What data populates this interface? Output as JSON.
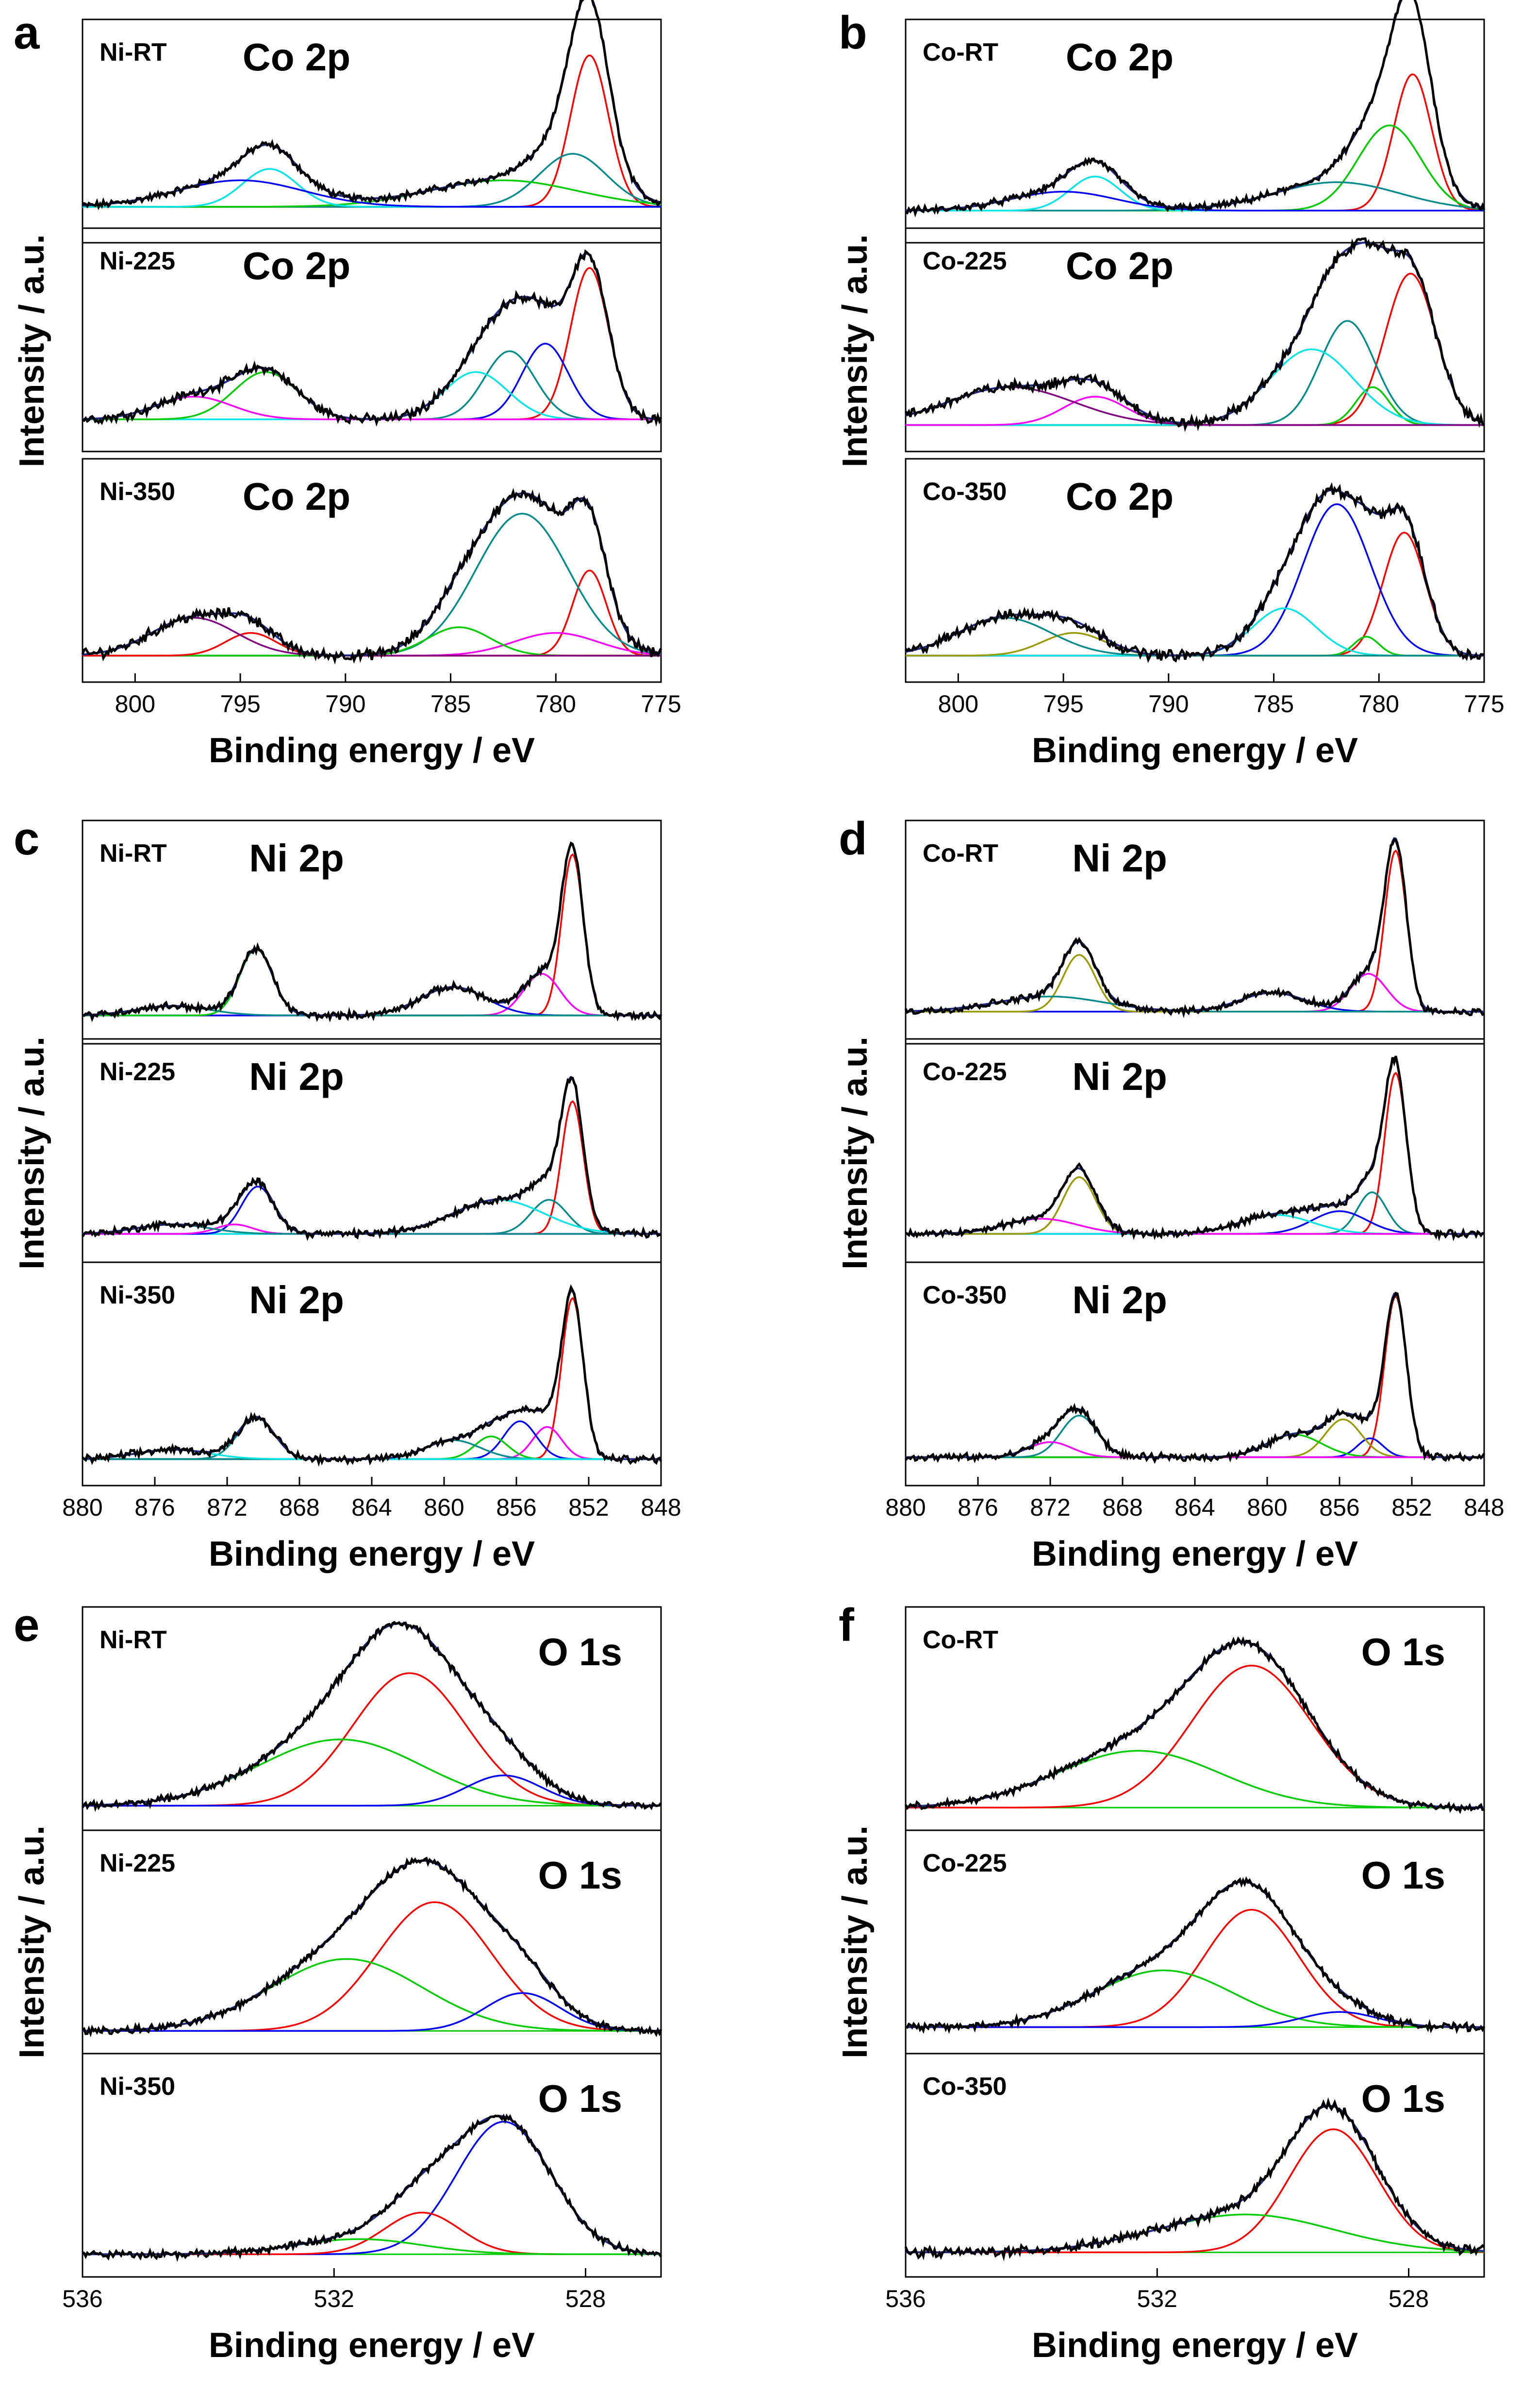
{
  "figure": {
    "panel_labels": [
      "a",
      "b",
      "c",
      "d",
      "e",
      "f"
    ],
    "ylabel": "Intensity / a.u.",
    "xlabel": "Binding energy / eV",
    "colors": {
      "experimental": "#000000",
      "envelope": "#1f2a8a",
      "red": "#ff0000",
      "green": "#00cc00",
      "blue": "#0000ff",
      "cyan": "#00e5e5",
      "magenta": "#ff00ff",
      "teal": "#008b8b",
      "olive": "#999900",
      "purple": "#800080",
      "baseline": "#00cc00"
    }
  },
  "chart_data": [
    {
      "panel": "a",
      "type": "line",
      "title": "Co 2p",
      "xlim": [
        802.5,
        775
      ],
      "xreverse": true,
      "xticks": [
        800,
        795,
        790,
        785,
        780,
        775
      ],
      "xlabel": "Binding energy / eV",
      "ylabel": "Intensity / a.u.",
      "subplots": [
        {
          "sample": "Ni-RT",
          "spectrum": "Co 2p",
          "base": 0.1,
          "noise": 0.015,
          "components": [
            {
              "color": "red",
              "center": 778.4,
              "height": 0.8,
              "width": 0.9
            },
            {
              "color": "teal",
              "center": 779.2,
              "height": 0.28,
              "width": 1.6
            },
            {
              "color": "green",
              "center": 782.5,
              "height": 0.14,
              "width": 3.5
            },
            {
              "color": "cyan",
              "center": 793.6,
              "height": 0.2,
              "width": 1.3
            },
            {
              "color": "blue",
              "center": 795,
              "height": 0.14,
              "width": 3
            }
          ]
        },
        {
          "sample": "Ni-225",
          "spectrum": "Co 2p",
          "base": 0.08,
          "noise": 0.02,
          "components": [
            {
              "color": "red",
              "center": 778.4,
              "height": 0.8,
              "width": 0.9
            },
            {
              "color": "blue",
              "center": 780.5,
              "height": 0.4,
              "width": 1.1
            },
            {
              "color": "teal",
              "center": 782.2,
              "height": 0.36,
              "width": 1.2
            },
            {
              "color": "cyan",
              "center": 783.8,
              "height": 0.25,
              "width": 1.5
            },
            {
              "color": "green",
              "center": 793.8,
              "height": 0.25,
              "width": 1.5
            },
            {
              "color": "magenta",
              "center": 797.2,
              "height": 0.12,
              "width": 1.8
            }
          ]
        },
        {
          "sample": "Ni-350",
          "spectrum": "Co 2p",
          "base": 0.05,
          "noise": 0.022,
          "components": [
            {
              "color": "red",
              "center": 778.4,
              "height": 0.45,
              "width": 0.8
            },
            {
              "color": "magenta",
              "center": 780,
              "height": 0.12,
              "width": 2
            },
            {
              "color": "teal",
              "center": 781.6,
              "height": 0.75,
              "width": 2.2
            },
            {
              "color": "green",
              "center": 784.6,
              "height": 0.15,
              "width": 1.5
            },
            {
              "color": "red",
              "center": 794.5,
              "height": 0.12,
              "width": 1.2
            },
            {
              "color": "purple",
              "center": 797.2,
              "height": 0.2,
              "width": 2
            }
          ]
        }
      ]
    },
    {
      "panel": "b",
      "type": "line",
      "title": "Co 2p",
      "xlim": [
        802.5,
        775
      ],
      "xreverse": true,
      "xticks": [
        800,
        795,
        790,
        785,
        780,
        775
      ],
      "xlabel": "Binding energy / eV",
      "ylabel": "Intensity / a.u.",
      "subplots": [
        {
          "sample": "Co-RT",
          "spectrum": "Co 2p",
          "base": 0.08,
          "noise": 0.015,
          "components": [
            {
              "color": "red",
              "center": 778.4,
              "height": 0.72,
              "width": 0.9
            },
            {
              "color": "green",
              "center": 779.5,
              "height": 0.45,
              "width": 1.5
            },
            {
              "color": "teal",
              "center": 782,
              "height": 0.15,
              "width": 3
            },
            {
              "color": "cyan",
              "center": 793.5,
              "height": 0.18,
              "width": 1.2
            },
            {
              "color": "blue",
              "center": 795,
              "height": 0.1,
              "width": 2.5
            }
          ]
        },
        {
          "sample": "Co-225",
          "spectrum": "Co 2p",
          "base": 0.05,
          "noise": 0.022,
          "components": [
            {
              "color": "red",
              "center": 778.5,
              "height": 0.8,
              "width": 1.2
            },
            {
              "color": "green",
              "center": 780.3,
              "height": 0.2,
              "width": 0.8
            },
            {
              "color": "teal",
              "center": 781.5,
              "height": 0.55,
              "width": 1.3
            },
            {
              "color": "cyan",
              "center": 783.2,
              "height": 0.4,
              "width": 2
            },
            {
              "color": "magenta",
              "center": 793.5,
              "height": 0.15,
              "width": 1.5
            },
            {
              "color": "purple",
              "center": 797.5,
              "height": 0.2,
              "width": 3
            }
          ]
        },
        {
          "sample": "Co-350",
          "spectrum": "Co 2p",
          "base": 0.05,
          "noise": 0.022,
          "components": [
            {
              "color": "red",
              "center": 778.8,
              "height": 0.65,
              "width": 1
            },
            {
              "color": "green",
              "center": 780.6,
              "height": 0.1,
              "width": 0.6
            },
            {
              "color": "blue",
              "center": 782,
              "height": 0.8,
              "width": 1.6
            },
            {
              "color": "cyan",
              "center": 784.5,
              "height": 0.25,
              "width": 1.5
            },
            {
              "color": "olive",
              "center": 794.5,
              "height": 0.12,
              "width": 1.5
            },
            {
              "color": "teal",
              "center": 797.8,
              "height": 0.2,
              "width": 2.2
            }
          ]
        }
      ]
    },
    {
      "panel": "c",
      "type": "line",
      "title": "Ni 2p",
      "xlim": [
        880,
        848
      ],
      "xreverse": true,
      "xticks": [
        880,
        876,
        872,
        868,
        864,
        860,
        856,
        852,
        848
      ],
      "xlabel": "Binding energy / eV",
      "ylabel": "Intensity / a.u.",
      "subplots": [
        {
          "sample": "Ni-RT",
          "spectrum": "Ni 2p",
          "base": 0.06,
          "noise": 0.015,
          "components": [
            {
              "color": "red",
              "center": 852.9,
              "height": 0.85,
              "width": 0.6
            },
            {
              "color": "magenta",
              "center": 854.6,
              "height": 0.22,
              "width": 1
            },
            {
              "color": "blue",
              "center": 859.5,
              "height": 0.15,
              "width": 1.8
            },
            {
              "color": "green",
              "center": 870.4,
              "height": 0.35,
              "width": 0.9
            },
            {
              "color": "teal",
              "center": 875,
              "height": 0.05,
              "width": 2
            }
          ]
        },
        {
          "sample": "Ni-225",
          "spectrum": "Ni 2p",
          "base": 0.06,
          "noise": 0.015,
          "components": [
            {
              "color": "red",
              "center": 852.9,
              "height": 0.7,
              "width": 0.6
            },
            {
              "color": "teal",
              "center": 854.2,
              "height": 0.18,
              "width": 1
            },
            {
              "color": "cyan",
              "center": 857,
              "height": 0.18,
              "width": 2.5
            },
            {
              "color": "blue",
              "center": 870.3,
              "height": 0.25,
              "width": 0.9
            },
            {
              "color": "magenta",
              "center": 871.6,
              "height": 0.05,
              "width": 1
            },
            {
              "color": "teal",
              "center": 875,
              "height": 0.05,
              "width": 2
            }
          ]
        },
        {
          "sample": "Ni-350",
          "spectrum": "Ni 2p",
          "base": 0.05,
          "noise": 0.015,
          "components": [
            {
              "color": "red",
              "center": 852.9,
              "height": 0.85,
              "width": 0.6
            },
            {
              "color": "magenta",
              "center": 854.3,
              "height": 0.17,
              "width": 0.8
            },
            {
              "color": "blue",
              "center": 855.8,
              "height": 0.2,
              "width": 0.9
            },
            {
              "color": "green",
              "center": 857.4,
              "height": 0.12,
              "width": 0.9
            },
            {
              "color": "teal",
              "center": 859.5,
              "height": 0.1,
              "width": 1.5
            },
            {
              "color": "teal",
              "center": 870.4,
              "height": 0.22,
              "width": 1
            },
            {
              "color": "cyan",
              "center": 875,
              "height": 0.05,
              "width": 2
            }
          ]
        }
      ]
    },
    {
      "panel": "d",
      "type": "line",
      "title": "Ni 2p",
      "xlim": [
        880,
        848
      ],
      "xreverse": true,
      "xticks": [
        880,
        876,
        872,
        868,
        864,
        860,
        856,
        852,
        848
      ],
      "xlabel": "Binding energy / eV",
      "ylabel": "Intensity / a.u.",
      "subplots": [
        {
          "sample": "Co-RT",
          "spectrum": "Ni 2p",
          "base": 0.08,
          "noise": 0.015,
          "components": [
            {
              "color": "red",
              "center": 852.9,
              "height": 0.85,
              "width": 0.6
            },
            {
              "color": "magenta",
              "center": 854.4,
              "height": 0.2,
              "width": 1
            },
            {
              "color": "blue",
              "center": 859.7,
              "height": 0.1,
              "width": 1.8
            },
            {
              "color": "olive",
              "center": 870.4,
              "height": 0.3,
              "width": 0.9
            },
            {
              "color": "teal",
              "center": 872,
              "height": 0.08,
              "width": 3
            }
          ]
        },
        {
          "sample": "Co-225",
          "spectrum": "Ni 2p",
          "base": 0.06,
          "noise": 0.015,
          "components": [
            {
              "color": "red",
              "center": 852.9,
              "height": 0.85,
              "width": 0.6
            },
            {
              "color": "teal",
              "center": 854.2,
              "height": 0.22,
              "width": 0.8
            },
            {
              "color": "blue",
              "center": 856,
              "height": 0.12,
              "width": 1.5
            },
            {
              "color": "cyan",
              "center": 859.5,
              "height": 0.1,
              "width": 2
            },
            {
              "color": "olive",
              "center": 870.4,
              "height": 0.3,
              "width": 0.9
            },
            {
              "color": "magenta",
              "center": 872.5,
              "height": 0.08,
              "width": 2
            }
          ]
        },
        {
          "sample": "Co-350",
          "spectrum": "Ni 2p",
          "base": 0.06,
          "noise": 0.015,
          "components": [
            {
              "color": "red",
              "center": 852.9,
              "height": 0.85,
              "width": 0.6
            },
            {
              "color": "blue",
              "center": 854.3,
              "height": 0.1,
              "width": 0.7
            },
            {
              "color": "olive",
              "center": 855.8,
              "height": 0.2,
              "width": 1
            },
            {
              "color": "green",
              "center": 858.5,
              "height": 0.12,
              "width": 1.5
            },
            {
              "color": "teal",
              "center": 870.4,
              "height": 0.22,
              "width": 1
            },
            {
              "color": "magenta",
              "center": 872,
              "height": 0.08,
              "width": 1.2
            }
          ]
        }
      ]
    },
    {
      "panel": "e",
      "type": "line",
      "title": "O 1s",
      "xlim": [
        536,
        526.8
      ],
      "xreverse": true,
      "xticks": [
        536,
        532,
        528
      ],
      "xlabel": "Binding energy / eV",
      "ylabel": "Intensity / a.u.",
      "subplots": [
        {
          "sample": "Ni-RT",
          "spectrum": "O 1s",
          "base": 0.04,
          "noise": 0.015,
          "components": [
            {
              "color": "red",
              "center": 530.8,
              "height": 0.7,
              "width": 0.9
            },
            {
              "color": "green",
              "center": 531.9,
              "height": 0.35,
              "width": 1.3
            },
            {
              "color": "blue",
              "center": 529.3,
              "height": 0.16,
              "width": 0.6
            }
          ]
        },
        {
          "sample": "Ni-225",
          "spectrum": "O 1s",
          "base": 0.03,
          "noise": 0.015,
          "components": [
            {
              "color": "red",
              "center": 530.4,
              "height": 0.68,
              "width": 0.9
            },
            {
              "color": "green",
              "center": 531.8,
              "height": 0.38,
              "width": 1.2
            },
            {
              "color": "blue",
              "center": 529,
              "height": 0.2,
              "width": 0.6
            }
          ]
        },
        {
          "sample": "Ni-350",
          "spectrum": "O 1s",
          "base": 0.03,
          "noise": 0.015,
          "components": [
            {
              "color": "blue",
              "center": 529.3,
              "height": 0.7,
              "width": 0.75
            },
            {
              "color": "red",
              "center": 530.6,
              "height": 0.22,
              "width": 0.6
            },
            {
              "color": "green",
              "center": 531.6,
              "height": 0.08,
              "width": 1
            }
          ]
        }
      ]
    },
    {
      "panel": "f",
      "type": "line",
      "title": "O 1s",
      "xlim": [
        536,
        526.8
      ],
      "xreverse": true,
      "xticks": [
        536,
        532,
        528
      ],
      "xlabel": "Binding energy / eV",
      "ylabel": "Intensity / a.u.",
      "subplots": [
        {
          "sample": "Co-RT",
          "spectrum": "O 1s",
          "base": 0.03,
          "noise": 0.015,
          "components": [
            {
              "color": "red",
              "center": 530.5,
              "height": 0.75,
              "width": 0.95
            },
            {
              "color": "green",
              "center": 532.3,
              "height": 0.3,
              "width": 1.3
            }
          ]
        },
        {
          "sample": "Co-225",
          "spectrum": "O 1s",
          "base": 0.05,
          "noise": 0.015,
          "components": [
            {
              "color": "red",
              "center": 530.5,
              "height": 0.62,
              "width": 0.75
            },
            {
              "color": "green",
              "center": 531.9,
              "height": 0.3,
              "width": 1.1
            },
            {
              "color": "blue",
              "center": 529.1,
              "height": 0.08,
              "width": 0.6
            }
          ]
        },
        {
          "sample": "Co-350",
          "spectrum": "O 1s",
          "base": 0.04,
          "noise": 0.02,
          "components": [
            {
              "color": "red",
              "center": 529.2,
              "height": 0.65,
              "width": 0.7
            },
            {
              "color": "green",
              "center": 530.6,
              "height": 0.2,
              "width": 1.4
            }
          ]
        }
      ]
    }
  ]
}
